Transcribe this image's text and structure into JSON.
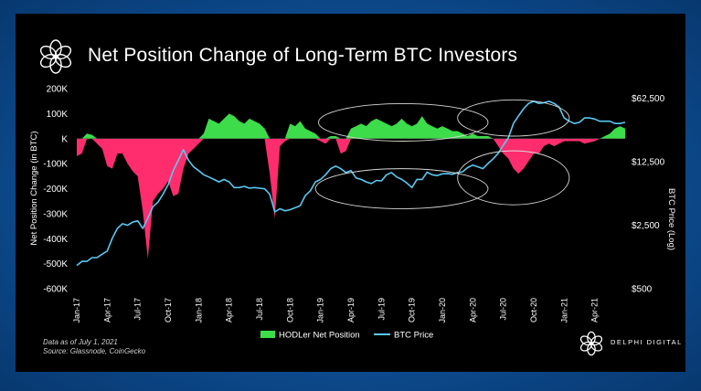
{
  "header": {
    "title": "Net Position Change of Long-Term BTC Investors",
    "logo_icon": "delphi-flower-icon"
  },
  "footer": {
    "note_line1": "Data as of July 1, 2021",
    "note_line2": "Source: Glassnode, CoinGecko",
    "brand": "DELPHI DIGITAL"
  },
  "colors": {
    "positive": "#3ddc4a",
    "negative": "#ff2d6e",
    "price": "#5bc8f0",
    "background": "#000000"
  },
  "chart_data": {
    "type": "bar",
    "title": "Net Position Change of Long-Term BTC Investors",
    "x_ticks": [
      "Jan-17",
      "Apr-17",
      "Jul-17",
      "Oct-17",
      "Jan-18",
      "Apr-18",
      "Jul-18",
      "Oct-18",
      "Jan-19",
      "Apr-19",
      "Jul-19",
      "Oct-19",
      "Jan-20",
      "Apr-20",
      "Jul-20",
      "Oct-20",
      "Jan-21",
      "Apr-21"
    ],
    "ylabel": "Net Position Change (in BTC)",
    "y2label": "BTC Price (Log)",
    "ylim": [
      -600000,
      200000
    ],
    "y_ticks": [
      200000,
      100000,
      0,
      -100000,
      -200000,
      -300000,
      -400000,
      -500000,
      -600000
    ],
    "y_tick_labels": [
      "200K",
      "100K",
      "K",
      "-100K",
      "-200K",
      "-300K",
      "-400K",
      "-500K",
      "-600K"
    ],
    "y2_scale": "log",
    "y2lim": [
      500,
      80000
    ],
    "y2_ticks": [
      62500,
      12500,
      2500,
      500
    ],
    "y2_tick_labels": [
      "$62,500",
      "$12,500",
      "$2,500",
      "$500"
    ],
    "legend_position": "bottom-center",
    "series": [
      {
        "name": "HODLer Net Position",
        "kind": "area",
        "x": [
          0,
          0.5,
          1,
          1.5,
          2,
          2.5,
          3,
          3.5,
          4,
          4.5,
          5,
          5.5,
          6,
          6.5,
          7,
          7.5,
          8,
          8.5,
          9,
          9.5,
          10,
          10.5,
          11,
          11.5,
          12,
          12.5,
          13,
          13.5,
          14,
          14.5,
          15,
          15.5,
          16,
          16.5,
          17,
          17.5,
          18,
          18.5,
          19,
          19.5,
          20,
          20.5,
          21,
          21.5,
          22,
          22.5,
          23,
          23.5,
          24,
          24.5,
          25,
          25.5,
          26,
          26.5,
          27,
          27.5,
          28,
          28.5,
          29,
          29.5,
          30,
          30.5,
          31,
          31.5,
          32,
          32.5,
          33,
          33.5,
          34,
          34.5,
          35,
          35.5,
          36,
          36.5,
          37,
          37.5,
          38,
          38.5,
          39,
          39.5,
          40,
          40.5,
          41,
          41.5,
          42,
          42.5,
          43,
          43.5,
          44,
          44.5,
          45,
          45.5,
          46,
          46.5,
          47,
          47.5,
          48,
          48.5,
          49,
          49.5,
          50,
          50.5,
          51,
          51.5,
          52,
          52.5,
          53,
          53.5,
          54
        ],
        "values": [
          -70000,
          -60000,
          20000,
          15000,
          -20000,
          -40000,
          -110000,
          -120000,
          -60000,
          -60000,
          -100000,
          -130000,
          -150000,
          -290000,
          -480000,
          -250000,
          -220000,
          -200000,
          -170000,
          -230000,
          -220000,
          -120000,
          -60000,
          -40000,
          -20000,
          20000,
          80000,
          70000,
          60000,
          80000,
          100000,
          90000,
          70000,
          60000,
          80000,
          70000,
          60000,
          40000,
          -140000,
          -320000,
          -30000,
          -10000,
          60000,
          50000,
          70000,
          40000,
          30000,
          20000,
          -10000,
          -20000,
          10000,
          10000,
          -60000,
          -50000,
          40000,
          50000,
          60000,
          50000,
          70000,
          80000,
          70000,
          60000,
          50000,
          60000,
          80000,
          60000,
          50000,
          60000,
          90000,
          60000,
          50000,
          40000,
          50000,
          40000,
          30000,
          30000,
          20000,
          10000,
          20000,
          10000,
          10000,
          10000,
          0,
          -30000,
          -60000,
          -80000,
          -120000,
          -140000,
          -120000,
          -90000,
          -60000,
          -60000,
          -30000,
          -20000,
          -30000,
          -20000,
          -10000,
          -10000,
          -10000,
          -10000,
          -20000,
          -15000,
          -10000,
          0,
          10000,
          20000,
          40000,
          50000,
          40000
        ]
      },
      {
        "name": "BTC Price",
        "kind": "line",
        "x": [
          0,
          0.5,
          1,
          1.5,
          2,
          2.5,
          3,
          3.5,
          4,
          4.5,
          5,
          5.5,
          6,
          6.5,
          7,
          7.5,
          8,
          8.5,
          9,
          9.5,
          10,
          10.5,
          11,
          11.5,
          12,
          12.5,
          13,
          13.5,
          14,
          14.5,
          15,
          15.5,
          16,
          16.5,
          17,
          17.5,
          18,
          18.5,
          19,
          19.5,
          20,
          20.5,
          21,
          21.5,
          22,
          22.5,
          23,
          23.5,
          24,
          24.5,
          25,
          25.5,
          26,
          26.5,
          27,
          27.5,
          28,
          28.5,
          29,
          29.5,
          30,
          30.5,
          31,
          31.5,
          32,
          32.5,
          33,
          33.5,
          34,
          34.5,
          35,
          35.5,
          36,
          36.5,
          37,
          37.5,
          38,
          38.5,
          39,
          39.5,
          40,
          40.5,
          41,
          41.5,
          42,
          42.5,
          43,
          43.5,
          44,
          44.5,
          45,
          45.5,
          46,
          46.5,
          47,
          47.5,
          48,
          48.5,
          49,
          49.5,
          50,
          50.5,
          51,
          51.5,
          52,
          52.5,
          53,
          53.5,
          54
        ],
        "values": [
          900,
          1000,
          1000,
          1100,
          1100,
          1200,
          1300,
          1800,
          2300,
          2600,
          2500,
          2700,
          2800,
          2300,
          3000,
          4000,
          4500,
          5500,
          7000,
          10000,
          13000,
          17000,
          13000,
          11000,
          10000,
          9000,
          8500,
          8000,
          7500,
          8000,
          7500,
          6500,
          6500,
          6700,
          6400,
          6500,
          6400,
          6300,
          5500,
          3500,
          3800,
          3600,
          3700,
          3900,
          4100,
          5300,
          6000,
          7500,
          8000,
          9000,
          10500,
          11200,
          10500,
          9500,
          10000,
          8300,
          8000,
          7500,
          7200,
          7800,
          7700,
          9000,
          9500,
          8500,
          8000,
          7300,
          6500,
          8000,
          8000,
          9600,
          9000,
          8800,
          9200,
          9300,
          9100,
          9500,
          9700,
          10800,
          11500,
          11000,
          10500,
          12000,
          13500,
          15500,
          19000,
          23000,
          33000,
          40000,
          48000,
          55000,
          58000,
          55000,
          56000,
          58000,
          55000,
          50000,
          38000,
          35000,
          33000,
          34000,
          38000,
          38000,
          37000,
          35000,
          35000,
          35000,
          33000,
          33000,
          34000
        ],
        "color": "#5bc8f0"
      }
    ],
    "annotations": [
      {
        "shape": "ellipse",
        "around": "Apr-18 to Oct-18 accumulation"
      },
      {
        "shape": "ellipse",
        "around": "Apr-18 to Oct-18 price"
      },
      {
        "shape": "ellipse",
        "around": "Oct-19 to Apr-20 accumulation"
      },
      {
        "shape": "ellipse",
        "around": "Oct-19 to Apr-20 price"
      }
    ]
  }
}
